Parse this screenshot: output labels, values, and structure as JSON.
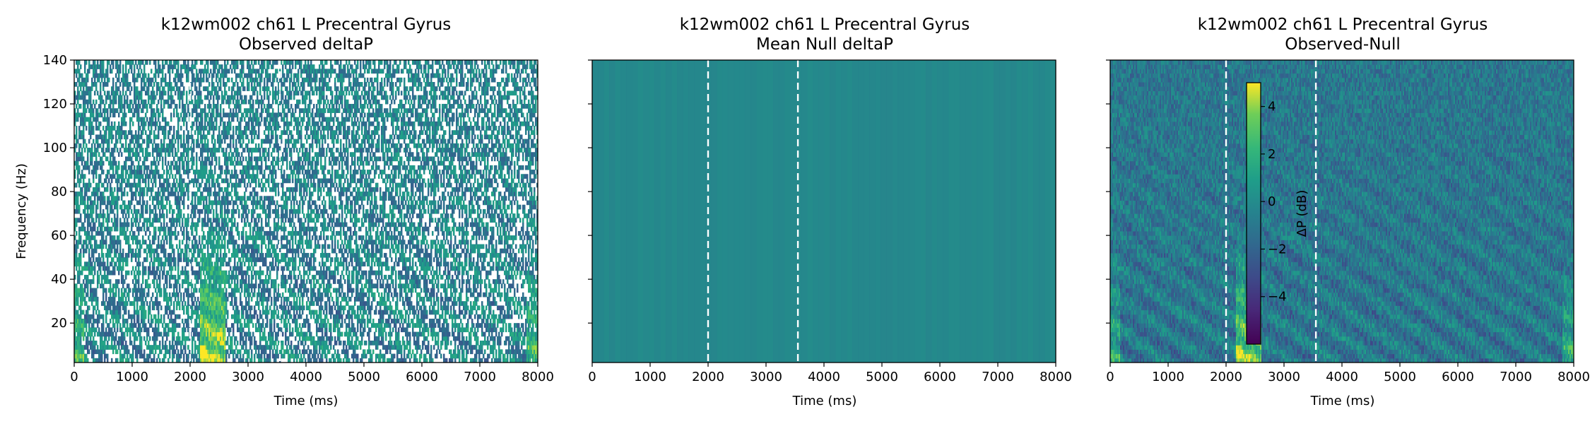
{
  "chart_data": [
    {
      "type": "heatmap",
      "title": "k12wm002 ch61 L Precentral Gyrus",
      "subtitle": "Observed deltaP",
      "xlabel": "Time (ms)",
      "ylabel": "Frequency (Hz)",
      "xlim": [
        0,
        8000
      ],
      "ylim": [
        2,
        140
      ],
      "xticks": [
        0,
        1000,
        2000,
        3000,
        4000,
        5000,
        6000,
        7000,
        8000
      ],
      "yticks": [
        20,
        40,
        60,
        80,
        100,
        120,
        140
      ],
      "event_lines_ms": [
        2000,
        3550
      ],
      "masked_nonsignificant": true
    },
    {
      "type": "heatmap",
      "title": "k12wm002 ch61 L Precentral Gyrus",
      "subtitle": "Mean Null deltaP",
      "xlabel": "Time (ms)",
      "ylabel": "",
      "xlim": [
        0,
        8000
      ],
      "ylim": [
        2,
        140
      ],
      "xticks": [
        0,
        1000,
        2000,
        3000,
        4000,
        5000,
        6000,
        7000,
        8000
      ],
      "yticks": [
        20,
        40,
        60,
        80,
        100,
        120,
        140
      ],
      "event_lines_ms": [
        2000,
        3550
      ]
    },
    {
      "type": "heatmap",
      "title": "k12wm002 ch61 L Precentral Gyrus",
      "subtitle": "Observed-Null",
      "xlabel": "Time (ms)",
      "ylabel": "",
      "xlim": [
        0,
        8000
      ],
      "ylim": [
        2,
        140
      ],
      "xticks": [
        0,
        1000,
        2000,
        3000,
        4000,
        5000,
        6000,
        7000,
        8000
      ],
      "yticks": [
        20,
        40,
        60,
        80,
        100,
        120,
        140
      ],
      "event_lines_ms": [
        2000,
        3550
      ],
      "colorbar": {
        "label": "ΔP (dB)",
        "range": [
          -6,
          5
        ],
        "ticks": [
          4,
          2,
          0,
          -2,
          -4
        ],
        "tick_labels": [
          "4",
          "2",
          "0",
          "−2",
          "−4"
        ],
        "colormap": "viridis"
      }
    }
  ]
}
